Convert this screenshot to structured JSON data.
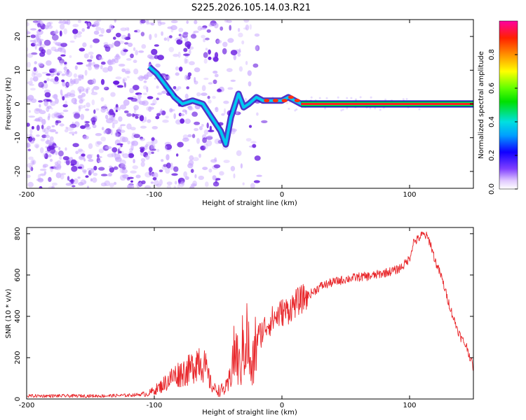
{
  "title": "S225.2026.105.14.03.R21",
  "colors": {
    "signal": "#e8262a",
    "speckle": "#6a1ee0",
    "axis": "#000000",
    "background": "#ffffff"
  },
  "chart_data": [
    {
      "type": "heatmap",
      "xlabel": "Height of straight line (km)",
      "ylabel": "Frequency (Hz)",
      "xlim": [
        -200,
        150
      ],
      "ylim": [
        -25,
        25
      ],
      "x_ticks": [
        -200,
        -100,
        0,
        100
      ],
      "y_ticks": [
        20,
        10,
        0,
        -10,
        -20
      ],
      "colorbar": {
        "label": "Normalized spectral amplitude",
        "range": [
          0,
          1
        ],
        "ticks": [
          "0.0",
          "0.2",
          "0.4",
          "0.6",
          "0.8"
        ],
        "tick_values": [
          0.0,
          0.2,
          0.4,
          0.6,
          0.8
        ]
      },
      "signal_path": [
        {
          "x": -104,
          "y": 11
        },
        {
          "x": -98,
          "y": 9
        },
        {
          "x": -90,
          "y": 5
        },
        {
          "x": -84,
          "y": 2
        },
        {
          "x": -78,
          "y": 0
        },
        {
          "x": -70,
          "y": 1
        },
        {
          "x": -62,
          "y": 0
        },
        {
          "x": -55,
          "y": -4
        },
        {
          "x": -48,
          "y": -8
        },
        {
          "x": -44,
          "y": -12
        },
        {
          "x": -40,
          "y": -4
        },
        {
          "x": -34,
          "y": 3
        },
        {
          "x": -30,
          "y": -1
        },
        {
          "x": -26,
          "y": 0
        },
        {
          "x": -20,
          "y": 2
        },
        {
          "x": -15,
          "y": 1
        },
        {
          "x": -8,
          "y": 1
        },
        {
          "x": 0,
          "y": 1
        },
        {
          "x": 5,
          "y": 2
        },
        {
          "x": 10,
          "y": 1
        },
        {
          "x": 15,
          "y": 0
        },
        {
          "x": 150,
          "y": 0
        }
      ]
    },
    {
      "type": "line",
      "xlabel": "Height of straight line (km)",
      "ylabel": "SNR (10 * v/v)",
      "xlim": [
        -200,
        150
      ],
      "ylim": [
        0,
        830
      ],
      "x_ticks": [
        -200,
        -100,
        0,
        100
      ],
      "y_ticks": [
        0,
        200,
        400,
        600,
        800
      ],
      "series": [
        {
          "name": "SNR",
          "x": [
            -200,
            -180,
            -160,
            -140,
            -120,
            -105,
            -95,
            -85,
            -78,
            -72,
            -65,
            -60,
            -55,
            -50,
            -46,
            -42,
            -39,
            -36,
            -33,
            -30,
            -27,
            -24,
            -20,
            -16,
            -12,
            -8,
            -4,
            0,
            5,
            10,
            15,
            20,
            25,
            30,
            40,
            50,
            60,
            70,
            80,
            90,
            95,
            100,
            103,
            106,
            110,
            113,
            116,
            120,
            125,
            130,
            135,
            140,
            145,
            150
          ],
          "values": [
            15,
            15,
            15,
            15,
            18,
            25,
            60,
            110,
            130,
            140,
            200,
            150,
            60,
            40,
            45,
            60,
            180,
            230,
            140,
            280,
            300,
            100,
            290,
            320,
            360,
            380,
            400,
            420,
            430,
            460,
            480,
            500,
            520,
            545,
            565,
            580,
            590,
            595,
            610,
            625,
            645,
            680,
            760,
            770,
            795,
            790,
            760,
            670,
            590,
            480,
            380,
            300,
            250,
            150
          ]
        }
      ]
    }
  ]
}
